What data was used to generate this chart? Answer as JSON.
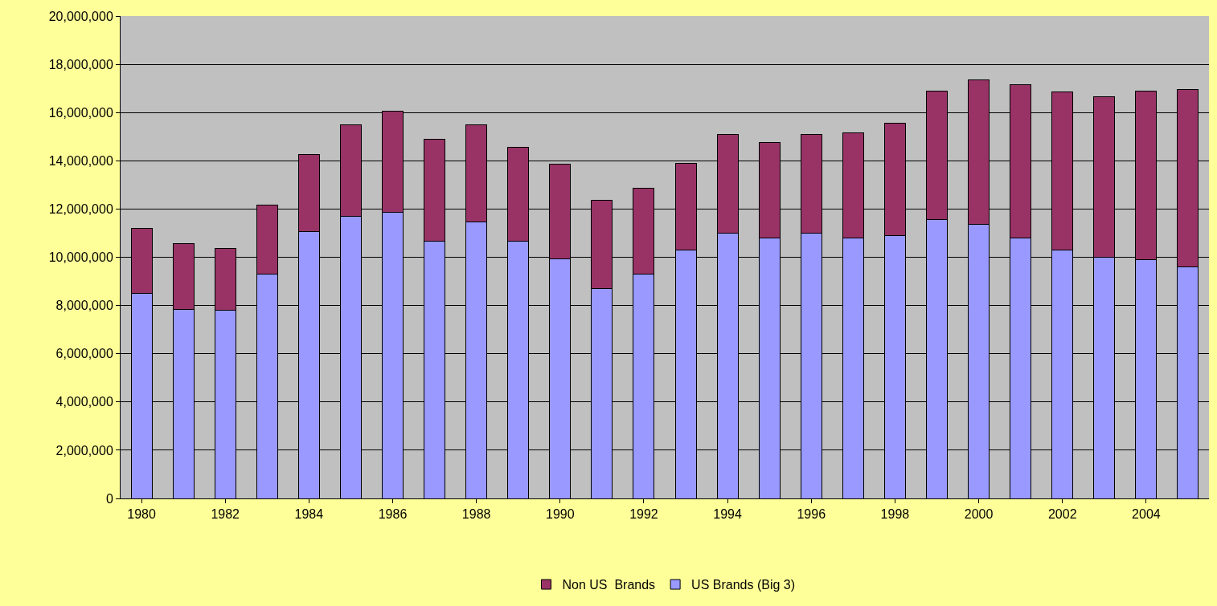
{
  "chart_data": {
    "type": "bar",
    "stacked": true,
    "categories": [
      "1980",
      null,
      "1982",
      null,
      "1984",
      null,
      "1986",
      null,
      "1988",
      null,
      "1990",
      null,
      "1992",
      null,
      "1994",
      null,
      "1996",
      null,
      "1998",
      null,
      "2000",
      null,
      "2002",
      null,
      "2004",
      null
    ],
    "series": [
      {
        "name": "US Brands (Big 3)",
        "color": "#9999ff",
        "values": [
          8500000,
          7850000,
          7800000,
          9300000,
          11050000,
          11700000,
          11850000,
          10650000,
          11450000,
          10650000,
          9950000,
          8700000,
          9300000,
          10300000,
          11000000,
          10800000,
          11000000,
          10800000,
          10900000,
          11550000,
          11350000,
          10800000,
          10300000,
          10000000,
          9900000,
          9600000
        ]
      },
      {
        "name": "Non US  Brands",
        "color": "#993366",
        "values": [
          2700000,
          2700000,
          2550000,
          2850000,
          3200000,
          3800000,
          4200000,
          4250000,
          4050000,
          3900000,
          3900000,
          3650000,
          3550000,
          3600000,
          4100000,
          3950000,
          4100000,
          4350000,
          4650000,
          5350000,
          6000000,
          6350000,
          6550000,
          6650000,
          7000000,
          7350000
        ]
      }
    ],
    "ylim": [
      0,
      20000000
    ],
    "yticks": [
      {
        "value": 0,
        "label": "0"
      },
      {
        "value": 2000000,
        "label": "2,000,000"
      },
      {
        "value": 4000000,
        "label": "4,000,000"
      },
      {
        "value": 6000000,
        "label": "6,000,000"
      },
      {
        "value": 8000000,
        "label": "8,000,000"
      },
      {
        "value": 10000000,
        "label": "10,000,000"
      },
      {
        "value": 12000000,
        "label": "12,000,000"
      },
      {
        "value": 14000000,
        "label": "14,000,000"
      },
      {
        "value": 16000000,
        "label": "16,000,000"
      },
      {
        "value": 18000000,
        "label": "18,000,000"
      },
      {
        "value": 20000000,
        "label": "20,000,000"
      }
    ],
    "grid": "y",
    "legend": "bottom"
  }
}
